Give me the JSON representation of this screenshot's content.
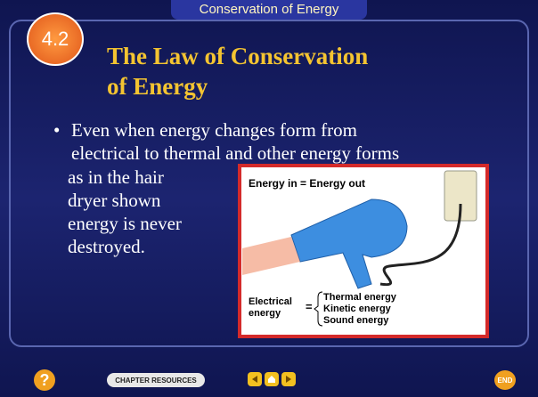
{
  "header": {
    "section": "Conservation of Energy",
    "badge": "4.2"
  },
  "title": {
    "lines": [
      "The Law of Conservation",
      "of Energy"
    ]
  },
  "bullet": {
    "marker": "•",
    "lines": [
      "Even when energy changes form from",
      "electrical to thermal and other energy forms",
      "as in the hair",
      "dryer shown",
      "energy is never",
      "destroyed."
    ]
  },
  "figure": {
    "heading": "Energy in = Energy out",
    "left": [
      "Electrical",
      "energy"
    ],
    "equals": "=",
    "right": [
      "Thermal energy",
      "Kinetic energy",
      "Sound energy"
    ]
  },
  "footer": {
    "help": "?",
    "resources": "CHAPTER RESOURCES",
    "end": "END"
  }
}
